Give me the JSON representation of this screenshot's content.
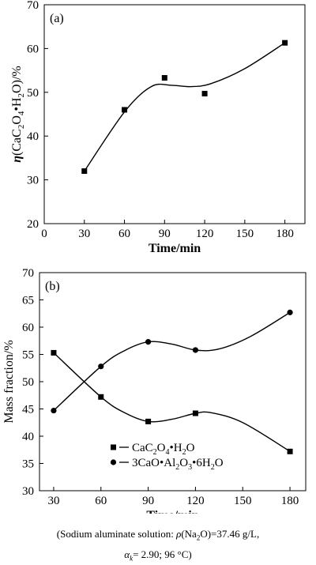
{
  "chart_data": [
    {
      "type": "scatter",
      "panel_label": "(a)",
      "xlabel": "Time/min",
      "ylabel_parts": {
        "eta": "η",
        "lead": "(CaC",
        "s1": "2",
        "mid": "O",
        "s2": "4",
        "tail": "•H",
        "s3": "2",
        "end": "O)/%"
      },
      "x_ticks": [
        "0",
        "30",
        "60",
        "90",
        "120",
        "150",
        "180"
      ],
      "y_ticks": [
        "20",
        "30",
        "40",
        "50",
        "60",
        "70"
      ],
      "xlim": [
        0,
        195
      ],
      "ylim": [
        20,
        70
      ],
      "grid": false,
      "x": [
        30,
        60,
        90,
        120,
        180
      ],
      "y": [
        32.0,
        46.0,
        53.3,
        49.7,
        61.3
      ],
      "curve": [
        [
          30,
          32.0
        ],
        [
          60,
          45.5
        ],
        [
          80,
          51.3
        ],
        [
          95,
          51.6
        ],
        [
          110,
          51.3
        ],
        [
          125,
          52.0
        ],
        [
          150,
          55.4
        ],
        [
          180,
          61.3
        ]
      ]
    },
    {
      "type": "line",
      "panel_label": "(b)",
      "xlabel": "Time/min",
      "ylabel": "Mass fraction/%",
      "x_ticks": [
        "30",
        "60",
        "90",
        "120",
        "150",
        "180"
      ],
      "y_ticks": [
        "30",
        "35",
        "40",
        "45",
        "50",
        "55",
        "60",
        "65",
        "70"
      ],
      "xlim": [
        21,
        190
      ],
      "ylim": [
        30,
        70
      ],
      "grid": false,
      "legend_placement": "bottom-left",
      "x": [
        30,
        60,
        90,
        120,
        180
      ],
      "series": [
        {
          "name_parts": {
            "a": "CaC",
            "s1": "2",
            "b": "O",
            "s2": "4",
            "c": "•H",
            "s3": "2",
            "d": "O"
          },
          "marker": "square",
          "values": [
            55.3,
            47.2,
            42.7,
            44.2,
            37.2
          ],
          "curve": [
            [
              30,
              55.3
            ],
            [
              60,
              47.2
            ],
            [
              75,
              44.3
            ],
            [
              90,
              42.7
            ],
            [
              105,
              43.1
            ],
            [
              120,
              44.2
            ],
            [
              130,
              44.3
            ],
            [
              150,
              42.5
            ],
            [
              180,
              37.2
            ]
          ]
        },
        {
          "name_parts": {
            "a": "3CaO•Al",
            "s1": "2",
            "b": "O",
            "s2": "3",
            "c": "•6H",
            "s3": "2",
            "d": "O"
          },
          "marker": "circle",
          "values": [
            44.7,
            52.8,
            57.3,
            55.8,
            62.7
          ],
          "curve": [
            [
              30,
              44.7
            ],
            [
              60,
              52.8
            ],
            [
              75,
              55.7
            ],
            [
              90,
              57.3
            ],
            [
              105,
              56.9
            ],
            [
              120,
              55.8
            ],
            [
              135,
              56.0
            ],
            [
              155,
              58.3
            ],
            [
              180,
              62.7
            ]
          ]
        }
      ]
    }
  ],
  "caption": {
    "line1": {
      "a": "(Sodium aluminate solution: ",
      "rho": "ρ",
      "b": "(Na",
      "s1": "2",
      "c": "O)=37.46 g/L,"
    },
    "line2": {
      "alpha": "α",
      "k": "k",
      "b": "= 2.90; 96 °C)"
    }
  }
}
